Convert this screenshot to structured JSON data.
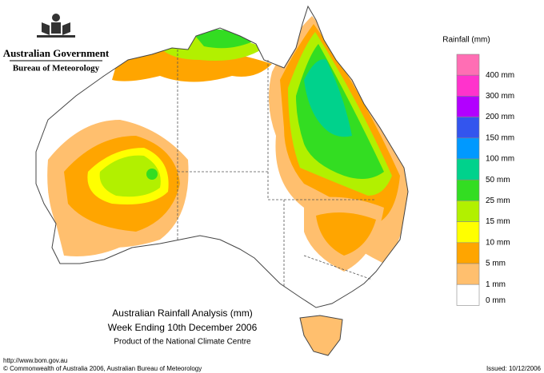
{
  "header": {
    "agency": "Australian Government",
    "bureau": "Bureau of Meteorology"
  },
  "map": {
    "title": "Australian Rainfall Analysis (mm)",
    "subtitle": "Week Ending 10th December 2006",
    "credit": "Product of the National Climate Centre"
  },
  "legend": {
    "title": "Rainfall (mm)",
    "top_color": "#ff6eb4",
    "items": [
      {
        "label": "400 mm",
        "color": "#ff33cc"
      },
      {
        "label": "300 mm",
        "color": "#b200ff"
      },
      {
        "label": "200 mm",
        "color": "#3355ee"
      },
      {
        "label": "150 mm",
        "color": "#0099ff"
      },
      {
        "label": "100 mm",
        "color": "#00d28c"
      },
      {
        "label": "50 mm",
        "color": "#33dd22"
      },
      {
        "label": "25 mm",
        "color": "#b2f000"
      },
      {
        "label": "15 mm",
        "color": "#ffff00"
      },
      {
        "label": "10 mm",
        "color": "#ffa500"
      },
      {
        "label": "5 mm",
        "color": "#ffbf6e"
      },
      {
        "label": "1 mm",
        "color": "#ffffff"
      },
      {
        "label": "0 mm",
        "color": null
      }
    ]
  },
  "footer": {
    "url": "http://www.bom.gov.au",
    "copyright": "© Commonwealth of Australia 2006, Australian Bureau of Meteorology",
    "issued": "Issued: 10/12/2006"
  }
}
